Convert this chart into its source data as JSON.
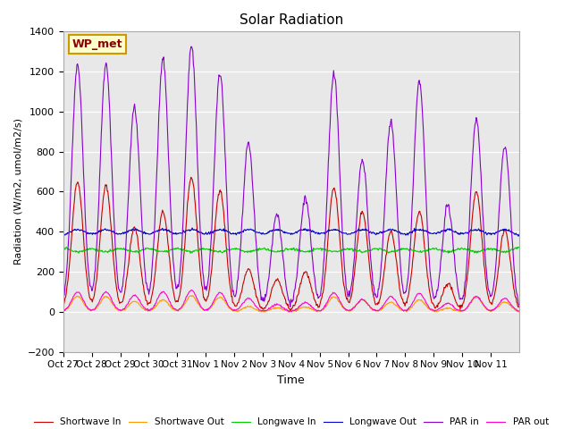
{
  "title": "Solar Radiation",
  "ylabel": "Radiation (W/m2, umol/m2/s)",
  "xlabel": "Time",
  "ylim": [
    -200,
    1400
  ],
  "yticks": [
    -200,
    0,
    200,
    400,
    600,
    800,
    1000,
    1200,
    1400
  ],
  "background_color": "#e8e8e8",
  "legend_label": "WP_met",
  "series": {
    "shortwave_in": {
      "label": "Shortwave In",
      "color": "#cc0000"
    },
    "shortwave_out": {
      "label": "Shortwave Out",
      "color": "#ff9900"
    },
    "longwave_in": {
      "label": "Longwave In",
      "color": "#00cc00"
    },
    "longwave_out": {
      "label": "Longwave Out",
      "color": "#0000cc"
    },
    "par_in": {
      "label": "PAR in",
      "color": "#8800cc"
    },
    "par_out": {
      "label": "PAR out",
      "color": "#ff00cc"
    }
  },
  "xtick_labels": [
    "Oct 27",
    "Oct 28",
    "Oct 29",
    "Oct 30",
    "Oct 31",
    "Nov 1",
    "Nov 2",
    "Nov 3",
    "Nov 4",
    "Nov 5",
    "Nov 6",
    "Nov 7",
    "Nov 8",
    "Nov 9",
    "Nov 10",
    "Nov 11"
  ],
  "n_days": 16,
  "points_per_day": 48,
  "sw_in_peaks": [
    650,
    630,
    420,
    500,
    670,
    610,
    210,
    160,
    200,
    620,
    500,
    400,
    500,
    140,
    600,
    410
  ],
  "par_in_peaks": [
    1230,
    1240,
    1020,
    1260,
    1330,
    1190,
    840,
    480,
    570,
    1190,
    760,
    950,
    1150,
    530,
    960,
    830
  ]
}
